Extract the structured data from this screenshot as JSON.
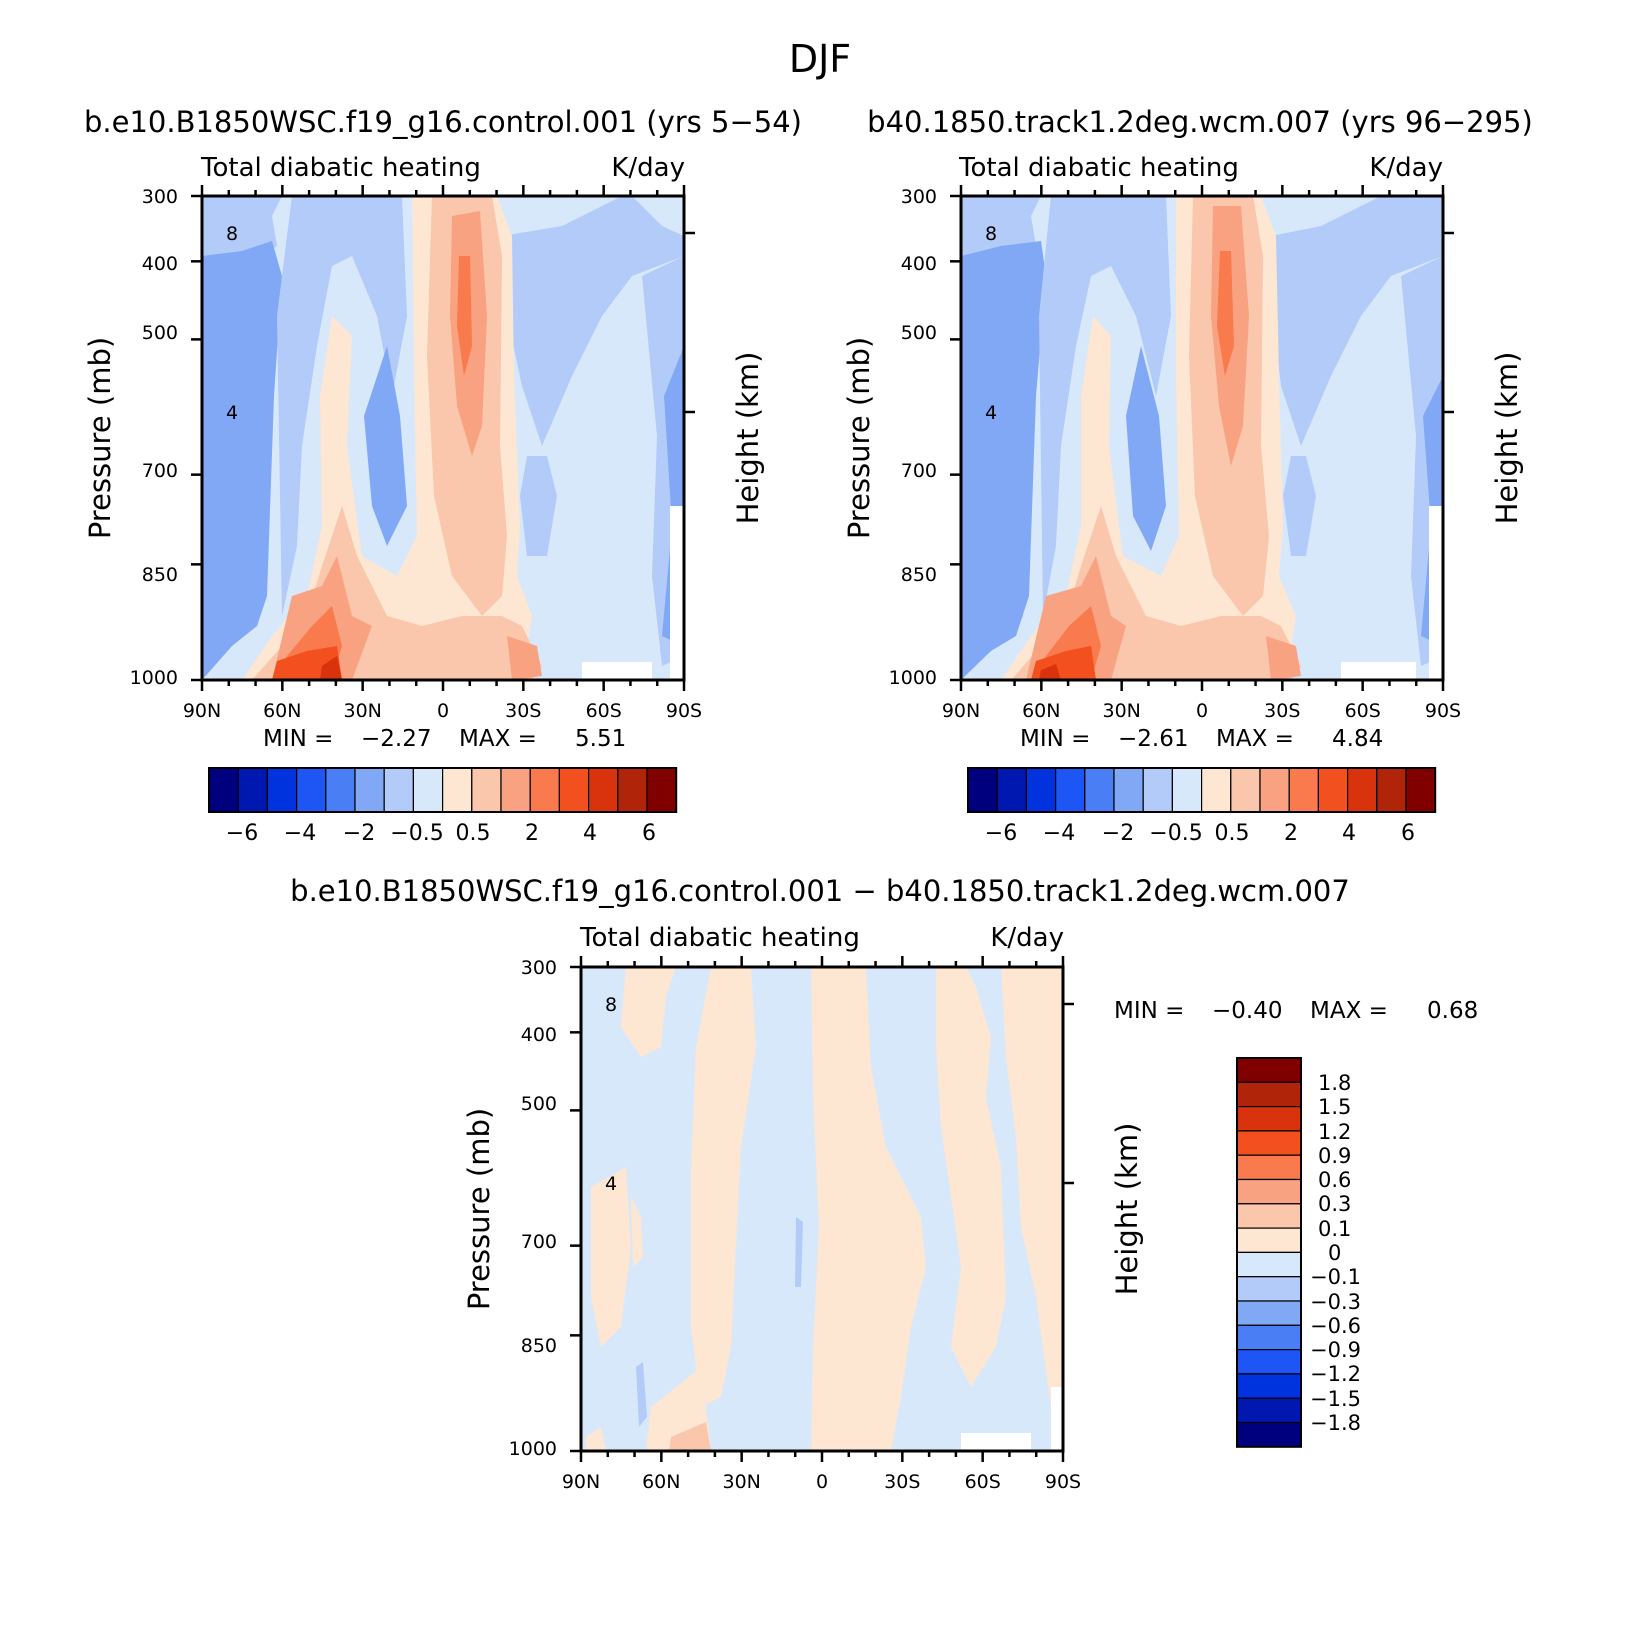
{
  "figure": {
    "title": "DJF"
  },
  "palette_15": [
    "#00007f",
    "#0018b0",
    "#0033dd",
    "#1e55f5",
    "#4a7ef5",
    "#80a8f5",
    "#b3cbf8",
    "#d8e8fb",
    "#fde6d2",
    "#fac6ac",
    "#f9a281",
    "#f87a4d",
    "#f2501e",
    "#d9330d",
    "#b02509",
    "#800000"
  ],
  "chart_data": [
    {
      "type": "contour",
      "panel_title": "b.e10.B1850WSC.f19_g16.control.001 (yrs 5-54)",
      "left_string": "Total diabatic heating",
      "right_string": "K/day",
      "ylabel": "Pressure (mb)",
      "ylabel_right": "Height (km)",
      "x_ticks": [
        "90N",
        "60N",
        "30N",
        "0",
        "30S",
        "60S",
        "90S"
      ],
      "y_ticks": [
        "300",
        "400",
        "500",
        "700",
        "850",
        "1000"
      ],
      "y_ticks_right": [
        "8",
        "4"
      ],
      "ylim": [
        1000,
        300
      ],
      "xlim": [
        90,
        -90
      ],
      "min_label": "MIN =",
      "min_value": "-2.27",
      "max_label": "MAX =",
      "max_value": "5.51",
      "colorbar_levels": [
        -6,
        -5,
        -4,
        -3,
        -2,
        -1,
        -0.5,
        0,
        0.5,
        1,
        2,
        3,
        4,
        5,
        6
      ],
      "colorbar_labels": [
        "-6",
        "-4",
        "-2",
        "-0.5",
        "0.5",
        "2",
        "4",
        "6"
      ]
    },
    {
      "type": "contour",
      "panel_title": "b40.1850.track1.2deg.wcm.007 (yrs 96-295)",
      "left_string": "Total diabatic heating",
      "right_string": "K/day",
      "ylabel": "Pressure (mb)",
      "ylabel_right": "Height (km)",
      "x_ticks": [
        "90N",
        "60N",
        "30N",
        "0",
        "30S",
        "60S",
        "90S"
      ],
      "y_ticks": [
        "300",
        "400",
        "500",
        "700",
        "850",
        "1000"
      ],
      "y_ticks_right": [
        "8",
        "4"
      ],
      "ylim": [
        1000,
        300
      ],
      "xlim": [
        90,
        -90
      ],
      "min_label": "MIN =",
      "min_value": "-2.61",
      "max_label": "MAX =",
      "max_value": "4.84",
      "colorbar_levels": [
        -6,
        -5,
        -4,
        -3,
        -2,
        -1,
        -0.5,
        0,
        0.5,
        1,
        2,
        3,
        4,
        5,
        6
      ],
      "colorbar_labels": [
        "-6",
        "-4",
        "-2",
        "-0.5",
        "0.5",
        "2",
        "4",
        "6"
      ]
    },
    {
      "type": "contour",
      "panel_title": "b.e10.B1850WSC.f19_g16.control.001 - b40.1850.track1.2deg.wcm.007",
      "left_string": "Total diabatic heating",
      "right_string": "K/day",
      "ylabel": "Pressure (mb)",
      "ylabel_right": "Height (km)",
      "x_ticks": [
        "90N",
        "60N",
        "30N",
        "0",
        "30S",
        "60S",
        "90S"
      ],
      "y_ticks": [
        "300",
        "400",
        "500",
        "700",
        "850",
        "1000"
      ],
      "y_ticks_right": [
        "8",
        "4"
      ],
      "ylim": [
        1000,
        300
      ],
      "xlim": [
        90,
        -90
      ],
      "min_label": "MIN =",
      "min_value": "-0.40",
      "max_label": "MAX =",
      "max_value": "0.68",
      "colorbar_levels": [
        -1.8,
        -1.5,
        -1.2,
        -0.9,
        -0.6,
        -0.3,
        -0.1,
        0,
        0.1,
        0.3,
        0.6,
        0.9,
        1.2,
        1.5,
        1.8
      ],
      "colorbar_labels": [
        "1.8",
        "1.5",
        "1.2",
        "0.9",
        "0.6",
        "0.3",
        "0.1",
        "0",
        "-0.1",
        "-0.3",
        "-0.6",
        "-0.9",
        "-1.2",
        "-1.5",
        "-1.8"
      ]
    }
  ]
}
